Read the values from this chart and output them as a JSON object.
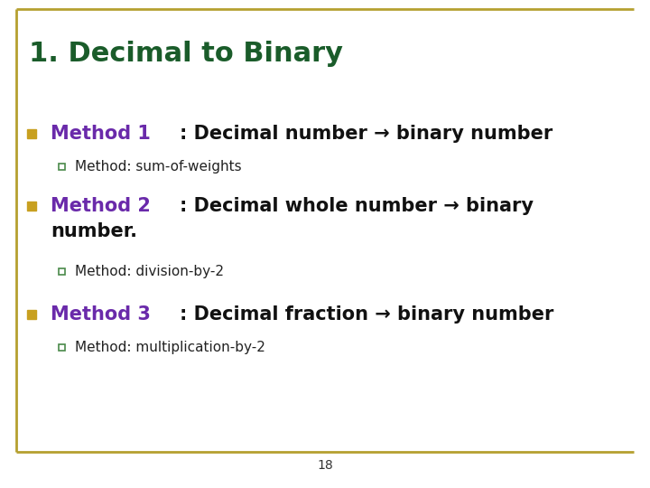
{
  "title": "1. Decimal to Binary",
  "title_color": "#1a5c2a",
  "title_fontsize": 22,
  "background_color": "#ffffff",
  "border_color": "#b5a030",
  "bullet_color": "#c8a020",
  "method_color": "#6a2aaa",
  "body_color": "#111111",
  "sub_color": "#222222",
  "sub_bullet_color": "#4a8a4a",
  "page_number": "18",
  "items": [
    {
      "method_label": "Method 1",
      "rest": ": Decimal number → binary number",
      "sub": "Method: sum-of-weights",
      "two_line": false
    },
    {
      "method_label": "Method 2",
      "rest_line1": ": Decimal whole number → binary",
      "rest_line2": "number.",
      "sub": "Method: division-by-2",
      "two_line": true
    },
    {
      "method_label": "Method 3",
      "rest": ": Decimal fraction → binary number",
      "sub": "Method: multiplication-by-2",
      "two_line": false
    }
  ]
}
